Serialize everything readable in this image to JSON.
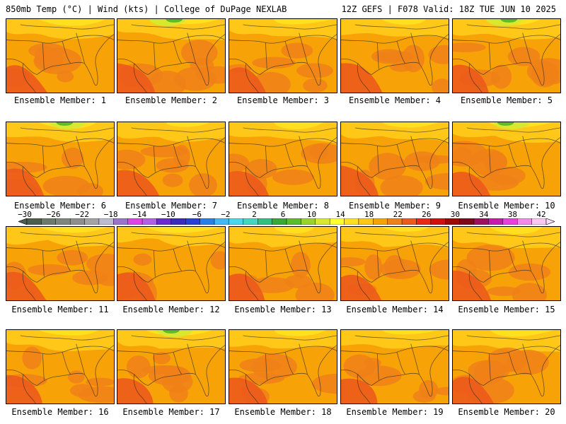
{
  "header": {
    "left": "850mb Temp (°C) | Wind (kts) | College of DuPage NEXLAB",
    "right": "12Z GEFS | F078 Valid: 18Z TUE JUN 10 2025"
  },
  "member_label_prefix": "Ensemble Member: ",
  "members": [
    1,
    2,
    3,
    4,
    5,
    6,
    7,
    8,
    9,
    10,
    11,
    12,
    13,
    14,
    15,
    16,
    17,
    18,
    19,
    20
  ],
  "colorbar": {
    "labels": [
      "−30",
      "−26",
      "−22",
      "−18",
      "−14",
      "−10",
      "−6",
      "−2",
      "2",
      "6",
      "10",
      "14",
      "18",
      "22",
      "26",
      "30",
      "34",
      "38",
      "42"
    ],
    "colors": [
      "#4e5e4e",
      "#6b7a6b",
      "#7e867e",
      "#8e8e8e",
      "#a3a3a3",
      "#bcbcd0",
      "#9a74c8",
      "#e044e0",
      "#b060e0",
      "#6a2cd0",
      "#3a2ac0",
      "#2840d8",
      "#2a7ee8",
      "#40b8f0",
      "#48d8e8",
      "#40d8c0",
      "#30c080",
      "#3aa838",
      "#5cbc2a",
      "#9ad42a",
      "#d8e830",
      "#ffff30",
      "#ffe020",
      "#ffc818",
      "#f7a308",
      "#f08018",
      "#ec5a1c",
      "#e82818",
      "#d01010",
      "#a00808",
      "#800818",
      "#a01060",
      "#c81ca8",
      "#e840d8",
      "#f08ce8",
      "#f8c8f0"
    ]
  },
  "map_colors": {
    "base": "#f7a308",
    "warm": "#f08018",
    "hot": "#ec5a1c",
    "cool": "#ffc818",
    "cooler": "#ffe020",
    "cold": "#d8e830",
    "coldest": "#5cbc2a"
  }
}
